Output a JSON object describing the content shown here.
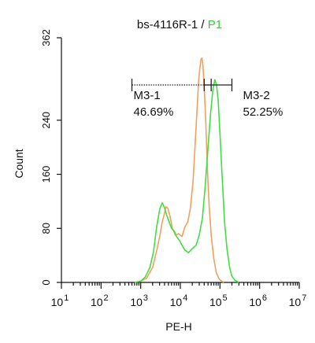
{
  "chart_data": {
    "type": "line",
    "title": {
      "sample": "bs-4116R-1",
      "separator": " / ",
      "gate": "P1"
    },
    "xlabel": "PE-H",
    "ylabel": "Count",
    "x_scale": "log10",
    "xlim": [
      10,
      10000000
    ],
    "ylim": [
      0,
      362
    ],
    "x_tick_exponents": [
      "1",
      "2",
      "3",
      "4",
      "5",
      "6",
      "7"
    ],
    "x_tick_base": "10",
    "y_ticks": [
      0,
      80,
      160,
      240,
      362
    ],
    "grid": false,
    "legend": "none",
    "colors": {
      "orange_series": "#f0a060",
      "green_series": "#44dd44",
      "title_gate": "#33cc33",
      "axis": "#111111"
    },
    "series": [
      {
        "color": "orange",
        "x": [
          700,
          1000,
          1400,
          2000,
          2600,
          3100,
          3500,
          3900,
          4300,
          4800,
          5500,
          6300,
          7500,
          9000,
          11000,
          13000,
          15500,
          18000,
          21000,
          25000,
          29000,
          33000,
          35000,
          37000,
          40000,
          44000,
          48000,
          53000,
          60000,
          70000,
          80000,
          95000,
          110000,
          125000
        ],
        "y": [
          0,
          2,
          6,
          22,
          50,
          72,
          90,
          100,
          112,
          110,
          98,
          80,
          70,
          72,
          68,
          82,
          90,
          110,
          150,
          230,
          300,
          330,
          332,
          322,
          290,
          235,
          170,
          115,
          70,
          35,
          15,
          5,
          2,
          0
        ]
      },
      {
        "color": "green",
        "x": [
          700,
          1000,
          1300,
          1700,
          2100,
          2500,
          3000,
          3500,
          4000,
          4500,
          5200,
          6000,
          7000,
          8000,
          9500,
          11000,
          13000,
          16000,
          20000,
          25000,
          30000,
          36000,
          42000,
          50000,
          58000,
          66000,
          74000,
          82000,
          90000,
          100000,
          115000,
          130000,
          150000,
          175000,
          200000,
          240000,
          300000
        ],
        "y": [
          0,
          2,
          8,
          22,
          45,
          80,
          108,
          118,
          110,
          100,
          90,
          80,
          76,
          68,
          62,
          55,
          48,
          44,
          50,
          55,
          70,
          95,
          140,
          200,
          250,
          285,
          300,
          292,
          270,
          220,
          150,
          90,
          50,
          22,
          9,
          3,
          0
        ]
      }
    ],
    "gates": [
      {
        "name": "M3-1",
        "percent": "46.69%",
        "x_range": [
          600,
          60000
        ],
        "line_style": "dotted"
      },
      {
        "name": "M3-2",
        "percent": "52.25%",
        "x_range": [
          40000,
          200000
        ],
        "line_style": "solid"
      }
    ]
  }
}
